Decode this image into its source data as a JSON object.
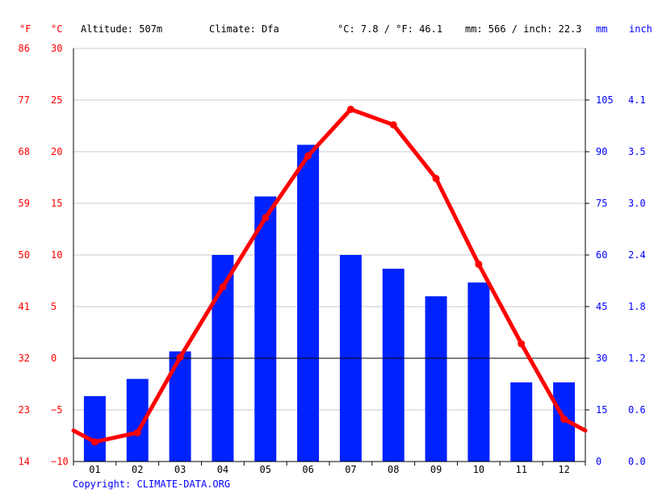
{
  "chart_data": {
    "type": "bar",
    "header": {
      "altitude": "Altitude: 507m",
      "climate": "Climate: Dfa",
      "temp_avg": "°C: 7.8 / °F: 46.1",
      "precip_total": "mm: 566 / inch: 22.3"
    },
    "units": {
      "left_f": "°F",
      "left_c": "°C",
      "right_mm": "mm",
      "right_inch": "inch"
    },
    "categories": [
      "01",
      "02",
      "03",
      "04",
      "05",
      "06",
      "07",
      "08",
      "09",
      "10",
      "11",
      "12"
    ],
    "series": [
      {
        "values": [
          19,
          24,
          32,
          60,
          77,
          92,
          60,
          56,
          48,
          52,
          23,
          23
        ],
        "color": "#0022ff",
        "axis": "right_mm"
      },
      {
        "values": [
          -8.1,
          -7.2,
          0.1,
          6.9,
          13.6,
          19.6,
          24.1,
          22.6,
          17.4,
          9.1,
          1.4,
          -5.9
        ],
        "color": "#ff0000",
        "axis": "left_c"
      }
    ],
    "ylim_c": [
      -10,
      30
    ],
    "ylim_mm": [
      0,
      120
    ],
    "y_ticks_c": [
      "30",
      "25",
      "20",
      "15",
      "10",
      "5",
      "0",
      "−5",
      "−10"
    ],
    "y_ticks_f": [
      "86",
      "77",
      "68",
      "59",
      "50",
      "41",
      "32",
      "23",
      "14"
    ],
    "y_ticks_mm": [
      "105",
      "90",
      "75",
      "60",
      "45",
      "30",
      "15",
      "0"
    ],
    "y_ticks_inch": [
      "4.1",
      "3.5",
      "3.0",
      "2.4",
      "1.8",
      "1.2",
      "0.6",
      "0.0"
    ],
    "grid": true,
    "copyright": "Copyright: CLIMATE-DATA.ORG"
  }
}
